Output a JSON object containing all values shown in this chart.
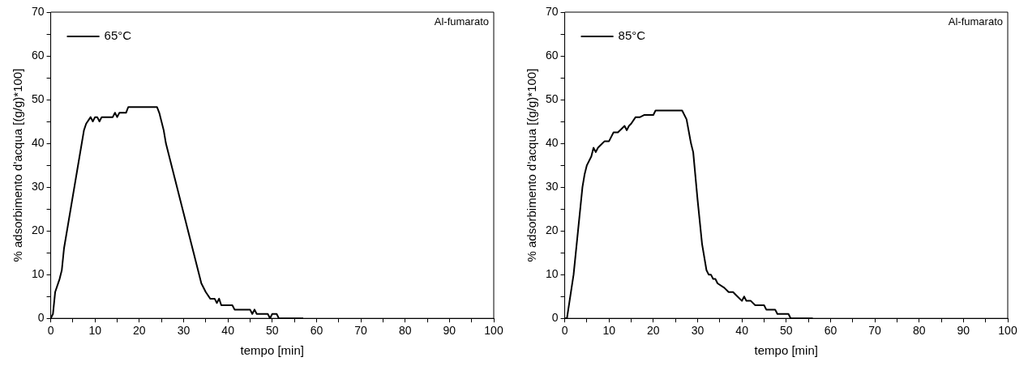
{
  "chart_data": [
    {
      "type": "line",
      "xlabel": "tempo [min]",
      "ylabel": "% adsorbimento d'acqua [(g/g)*100]",
      "annotations": [
        "Al-fumarato"
      ],
      "legend": "top left",
      "marker": "none",
      "grid": false,
      "xlim": [
        0,
        100
      ],
      "ylim": [
        0,
        70
      ],
      "xticks": [
        0,
        {
          "value": 5,
          "label": null
        },
        10,
        {
          "value": 15,
          "label": null
        },
        20,
        {
          "value": 25,
          "label": null
        },
        30,
        {
          "value": 35,
          "label": null
        },
        40,
        {
          "value": 45,
          "label": null
        },
        50,
        {
          "value": 55,
          "label": null
        },
        60,
        {
          "value": 65,
          "label": null
        },
        70,
        {
          "value": 75,
          "label": null
        },
        80,
        {
          "value": 85,
          "label": null
        },
        90,
        {
          "value": 95,
          "label": null
        },
        100
      ],
      "yticks": [
        0,
        {
          "value": 5,
          "label": null
        },
        10,
        {
          "value": 15,
          "label": null
        },
        20,
        {
          "value": 25,
          "label": null
        },
        30,
        {
          "value": 35,
          "label": null
        },
        40,
        {
          "value": 45,
          "label": null
        },
        50,
        {
          "value": 55,
          "label": null
        },
        60,
        {
          "value": 65,
          "label": null
        },
        70
      ],
      "series": [
        {
          "name": "65°C",
          "color": "#000000",
          "x": [
            0,
            0.5,
            1,
            2,
            2.5,
            3,
            4,
            5,
            6,
            7,
            7.5,
            8,
            9,
            9.5,
            10,
            10.5,
            11,
            11.5,
            14,
            14.5,
            15,
            15.5,
            17,
            17.5,
            24,
            24.5,
            25.5,
            26,
            28,
            30,
            32,
            34,
            35,
            36,
            37,
            37.5,
            38,
            38.5,
            41,
            41.5,
            45,
            45.5,
            46,
            46.5,
            49,
            49.5,
            50,
            51,
            51.5,
            57
          ],
          "values": [
            0,
            1,
            6,
            9,
            11,
            16,
            22,
            28,
            34,
            40,
            43,
            44.5,
            46,
            45,
            46,
            46,
            45,
            46,
            46,
            47,
            46,
            47,
            47,
            48.3,
            48.3,
            47,
            43,
            40,
            32,
            24,
            16,
            8,
            6,
            4.5,
            4.5,
            3.5,
            4.5,
            3,
            3,
            2,
            2,
            1,
            2,
            1,
            1,
            0,
            1,
            1,
            0,
            0
          ]
        }
      ]
    },
    {
      "type": "line",
      "xlabel": "tempo [min]",
      "ylabel": "% adsorbimento d'acqua [(g/g)*100]",
      "annotations": [
        "Al-fumarato"
      ],
      "legend": "top left",
      "marker": "none",
      "grid": false,
      "xlim": [
        0,
        100
      ],
      "ylim": [
        0,
        70
      ],
      "xticks": [
        0,
        {
          "value": 5,
          "label": null
        },
        10,
        {
          "value": 15,
          "label": null
        },
        20,
        {
          "value": 25,
          "label": null
        },
        30,
        {
          "value": 35,
          "label": null
        },
        40,
        {
          "value": 45,
          "label": null
        },
        50,
        {
          "value": 55,
          "label": null
        },
        60,
        {
          "value": 65,
          "label": null
        },
        70,
        {
          "value": 75,
          "label": null
        },
        80,
        {
          "value": 85,
          "label": null
        },
        90,
        {
          "value": 95,
          "label": null
        },
        100
      ],
      "yticks": [
        0,
        {
          "value": 5,
          "label": null
        },
        10,
        {
          "value": 15,
          "label": null
        },
        20,
        {
          "value": 25,
          "label": null
        },
        30,
        {
          "value": 35,
          "label": null
        },
        40,
        {
          "value": 45,
          "label": null
        },
        50,
        {
          "value": 55,
          "label": null
        },
        60,
        {
          "value": 65,
          "label": null
        },
        70
      ],
      "series": [
        {
          "name": "85°C",
          "color": "#000000",
          "x": [
            0,
            0.5,
            2,
            3,
            4,
            4.5,
            5,
            6,
            6.5,
            7,
            7.5,
            8,
            9,
            10,
            11,
            12,
            13,
            13.5,
            14,
            14.5,
            15,
            16,
            17,
            18,
            20,
            20.5,
            26.5,
            27.5,
            28.5,
            29,
            30,
            31,
            32,
            32.5,
            33,
            33.5,
            34,
            34.5,
            36,
            37,
            38,
            39,
            40,
            40.5,
            41,
            42,
            43,
            45,
            45.5,
            47.5,
            48,
            50.5,
            51,
            56
          ],
          "values": [
            0,
            0,
            10,
            20,
            30,
            33,
            35,
            37,
            39,
            38,
            39,
            39.5,
            40.5,
            40.5,
            42.5,
            42.5,
            43.5,
            44,
            43,
            44,
            44.5,
            46,
            46,
            46.5,
            46.5,
            47.5,
            47.5,
            45.5,
            40,
            38,
            27,
            17,
            11,
            10,
            10,
            9,
            9,
            8,
            7,
            6,
            6,
            5,
            4,
            5,
            4,
            4,
            3,
            3,
            2,
            2,
            1,
            1,
            0,
            0
          ]
        }
      ]
    }
  ]
}
